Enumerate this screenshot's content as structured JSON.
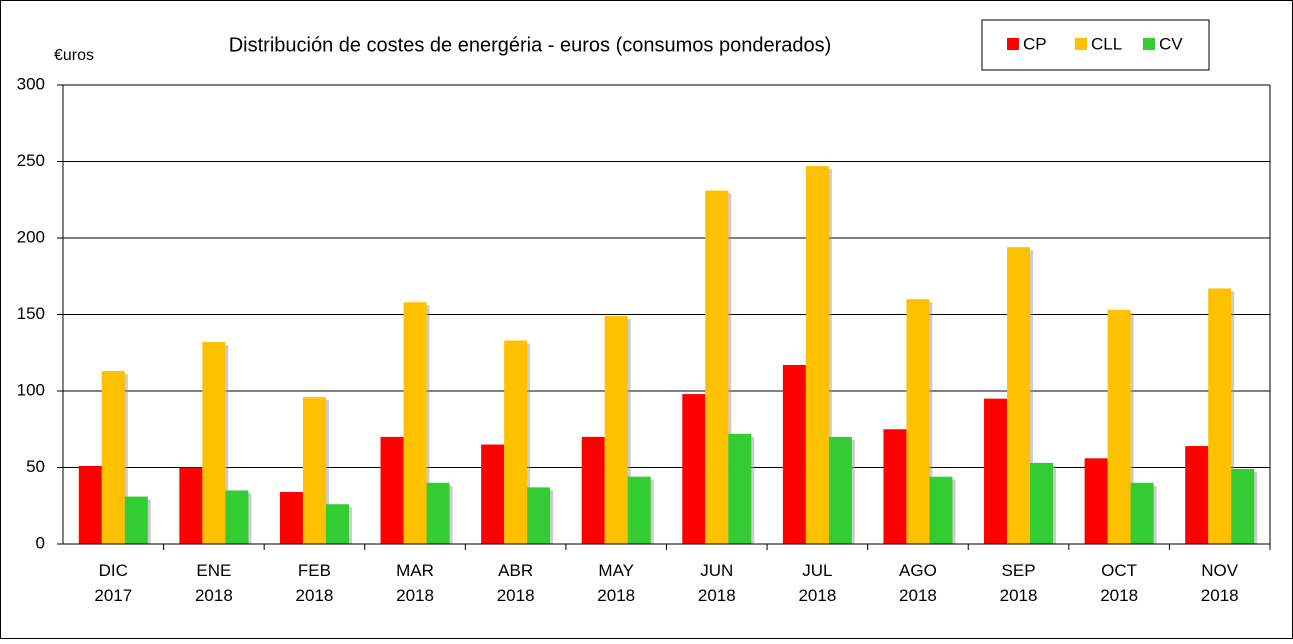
{
  "chart_data": {
    "type": "bar",
    "title": "Distribución de costes de energéria - euros (consumos ponderados)",
    "y_label": "€uros",
    "categories": [
      [
        "DIC",
        "2017"
      ],
      [
        "ENE",
        "2018"
      ],
      [
        "FEB",
        "2018"
      ],
      [
        "MAR",
        "2018"
      ],
      [
        "ABR",
        "2018"
      ],
      [
        "MAY",
        "2018"
      ],
      [
        "JUN",
        "2018"
      ],
      [
        "JUL",
        "2018"
      ],
      [
        "AGO",
        "2018"
      ],
      [
        "SEP",
        "2018"
      ],
      [
        "OCT",
        "2018"
      ],
      [
        "NOV",
        "2018"
      ]
    ],
    "series": [
      {
        "name": "CP",
        "color": "#ff0000",
        "values": [
          51,
          50,
          34,
          70,
          65,
          70,
          98,
          117,
          75,
          95,
          56,
          64
        ]
      },
      {
        "name": "CLL",
        "color": "#ffc000",
        "values": [
          113,
          132,
          96,
          158,
          133,
          149,
          231,
          247,
          160,
          194,
          153,
          167
        ]
      },
      {
        "name": "CV",
        "color": "#33cc33",
        "values": [
          31,
          35,
          26,
          40,
          37,
          44,
          72,
          70,
          44,
          53,
          40,
          49
        ]
      }
    ],
    "ylim": [
      0,
      300
    ],
    "yticks": [
      0,
      50,
      100,
      150,
      200,
      250,
      300
    ],
    "grid": true,
    "legend": "top-right"
  }
}
